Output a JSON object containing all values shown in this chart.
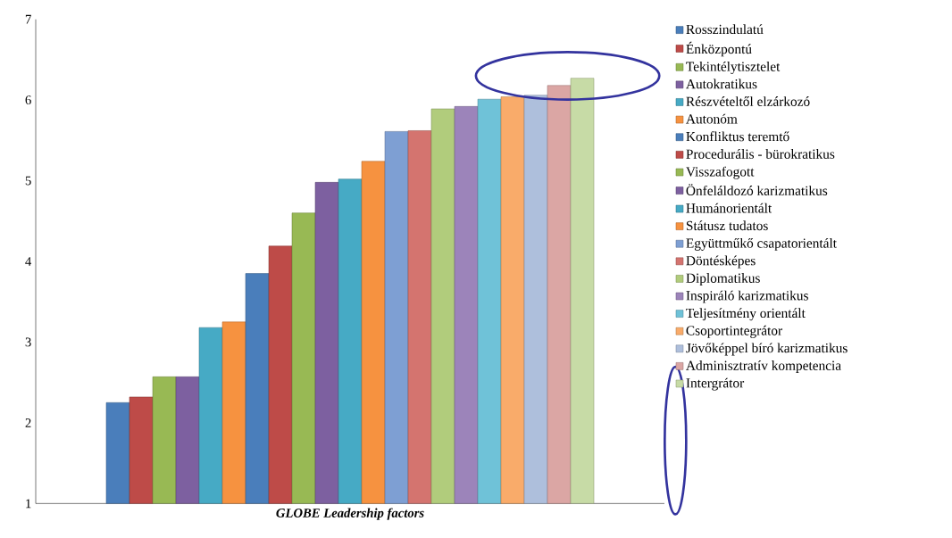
{
  "chart_data": {
    "type": "bar",
    "xlabel": "GLOBE Leadership factors",
    "categories": [
      null
    ],
    "ylim": [
      1,
      7
    ],
    "yticks": [
      1,
      2,
      3,
      4,
      5,
      6,
      7
    ],
    "legend": "right",
    "series": [
      {
        "name": "Rosszindulatú",
        "color": "#4a7ebb",
        "values": [
          2.25
        ]
      },
      {
        "name": "Énközpontú",
        "color": "#be4b48",
        "values": [
          2.32
        ]
      },
      {
        "name": "Tekintélytisztelet",
        "color": "#98b954",
        "values": [
          2.57
        ]
      },
      {
        "name": "Autokratikus",
        "color": "#7d60a0",
        "values": [
          2.57
        ]
      },
      {
        "name": "Részvételtől elzárkozó",
        "color": "#46aac5",
        "values": [
          3.18
        ]
      },
      {
        "name": "Autonóm",
        "color": "#f69240",
        "values": [
          3.25
        ]
      },
      {
        "name": "Konfliktus teremtő",
        "color": "#4a7ebb",
        "values": [
          3.85
        ]
      },
      {
        "name": "Procedurális - bürokratikus",
        "color": "#be4b48",
        "values": [
          4.19
        ]
      },
      {
        "name": "Visszafogott",
        "color": "#98b954",
        "values": [
          4.6
        ]
      },
      {
        "name": "Önfeláldozó karizmatikus",
        "color": "#7d60a0",
        "values": [
          4.98
        ]
      },
      {
        "name": "Humánorientált",
        "color": "#46aac5",
        "values": [
          5.02
        ]
      },
      {
        "name": "Státusz tudatos",
        "color": "#f69240",
        "values": [
          5.24
        ]
      },
      {
        "name": "Együttműkő csapatorientált",
        "color": "#7e9fd3",
        "values": [
          5.61
        ]
      },
      {
        "name": "Döntésképes",
        "color": "#d4746f",
        "values": [
          5.62
        ]
      },
      {
        "name": "Diplomatikus",
        "color": "#b1cc7c",
        "values": [
          5.89
        ]
      },
      {
        "name": "Inspiráló karizmatikus",
        "color": "#9c84ba",
        "values": [
          5.92
        ]
      },
      {
        "name": "Teljesítmény orientált",
        "color": "#6fc2d8",
        "values": [
          6.01
        ]
      },
      {
        "name": "Csoportintegrátor",
        "color": "#f9ab6a",
        "values": [
          6.04
        ]
      },
      {
        "name": "Jövőképpel bíró karizmatikus",
        "color": "#aebfdc",
        "values": [
          6.06
        ]
      },
      {
        "name": "Adminisztratív kompetencia",
        "color": "#dba6a4",
        "values": [
          6.18
        ]
      },
      {
        "name": "Intergrátor",
        "color": "#c7dba6",
        "values": [
          6.27
        ]
      }
    ]
  }
}
